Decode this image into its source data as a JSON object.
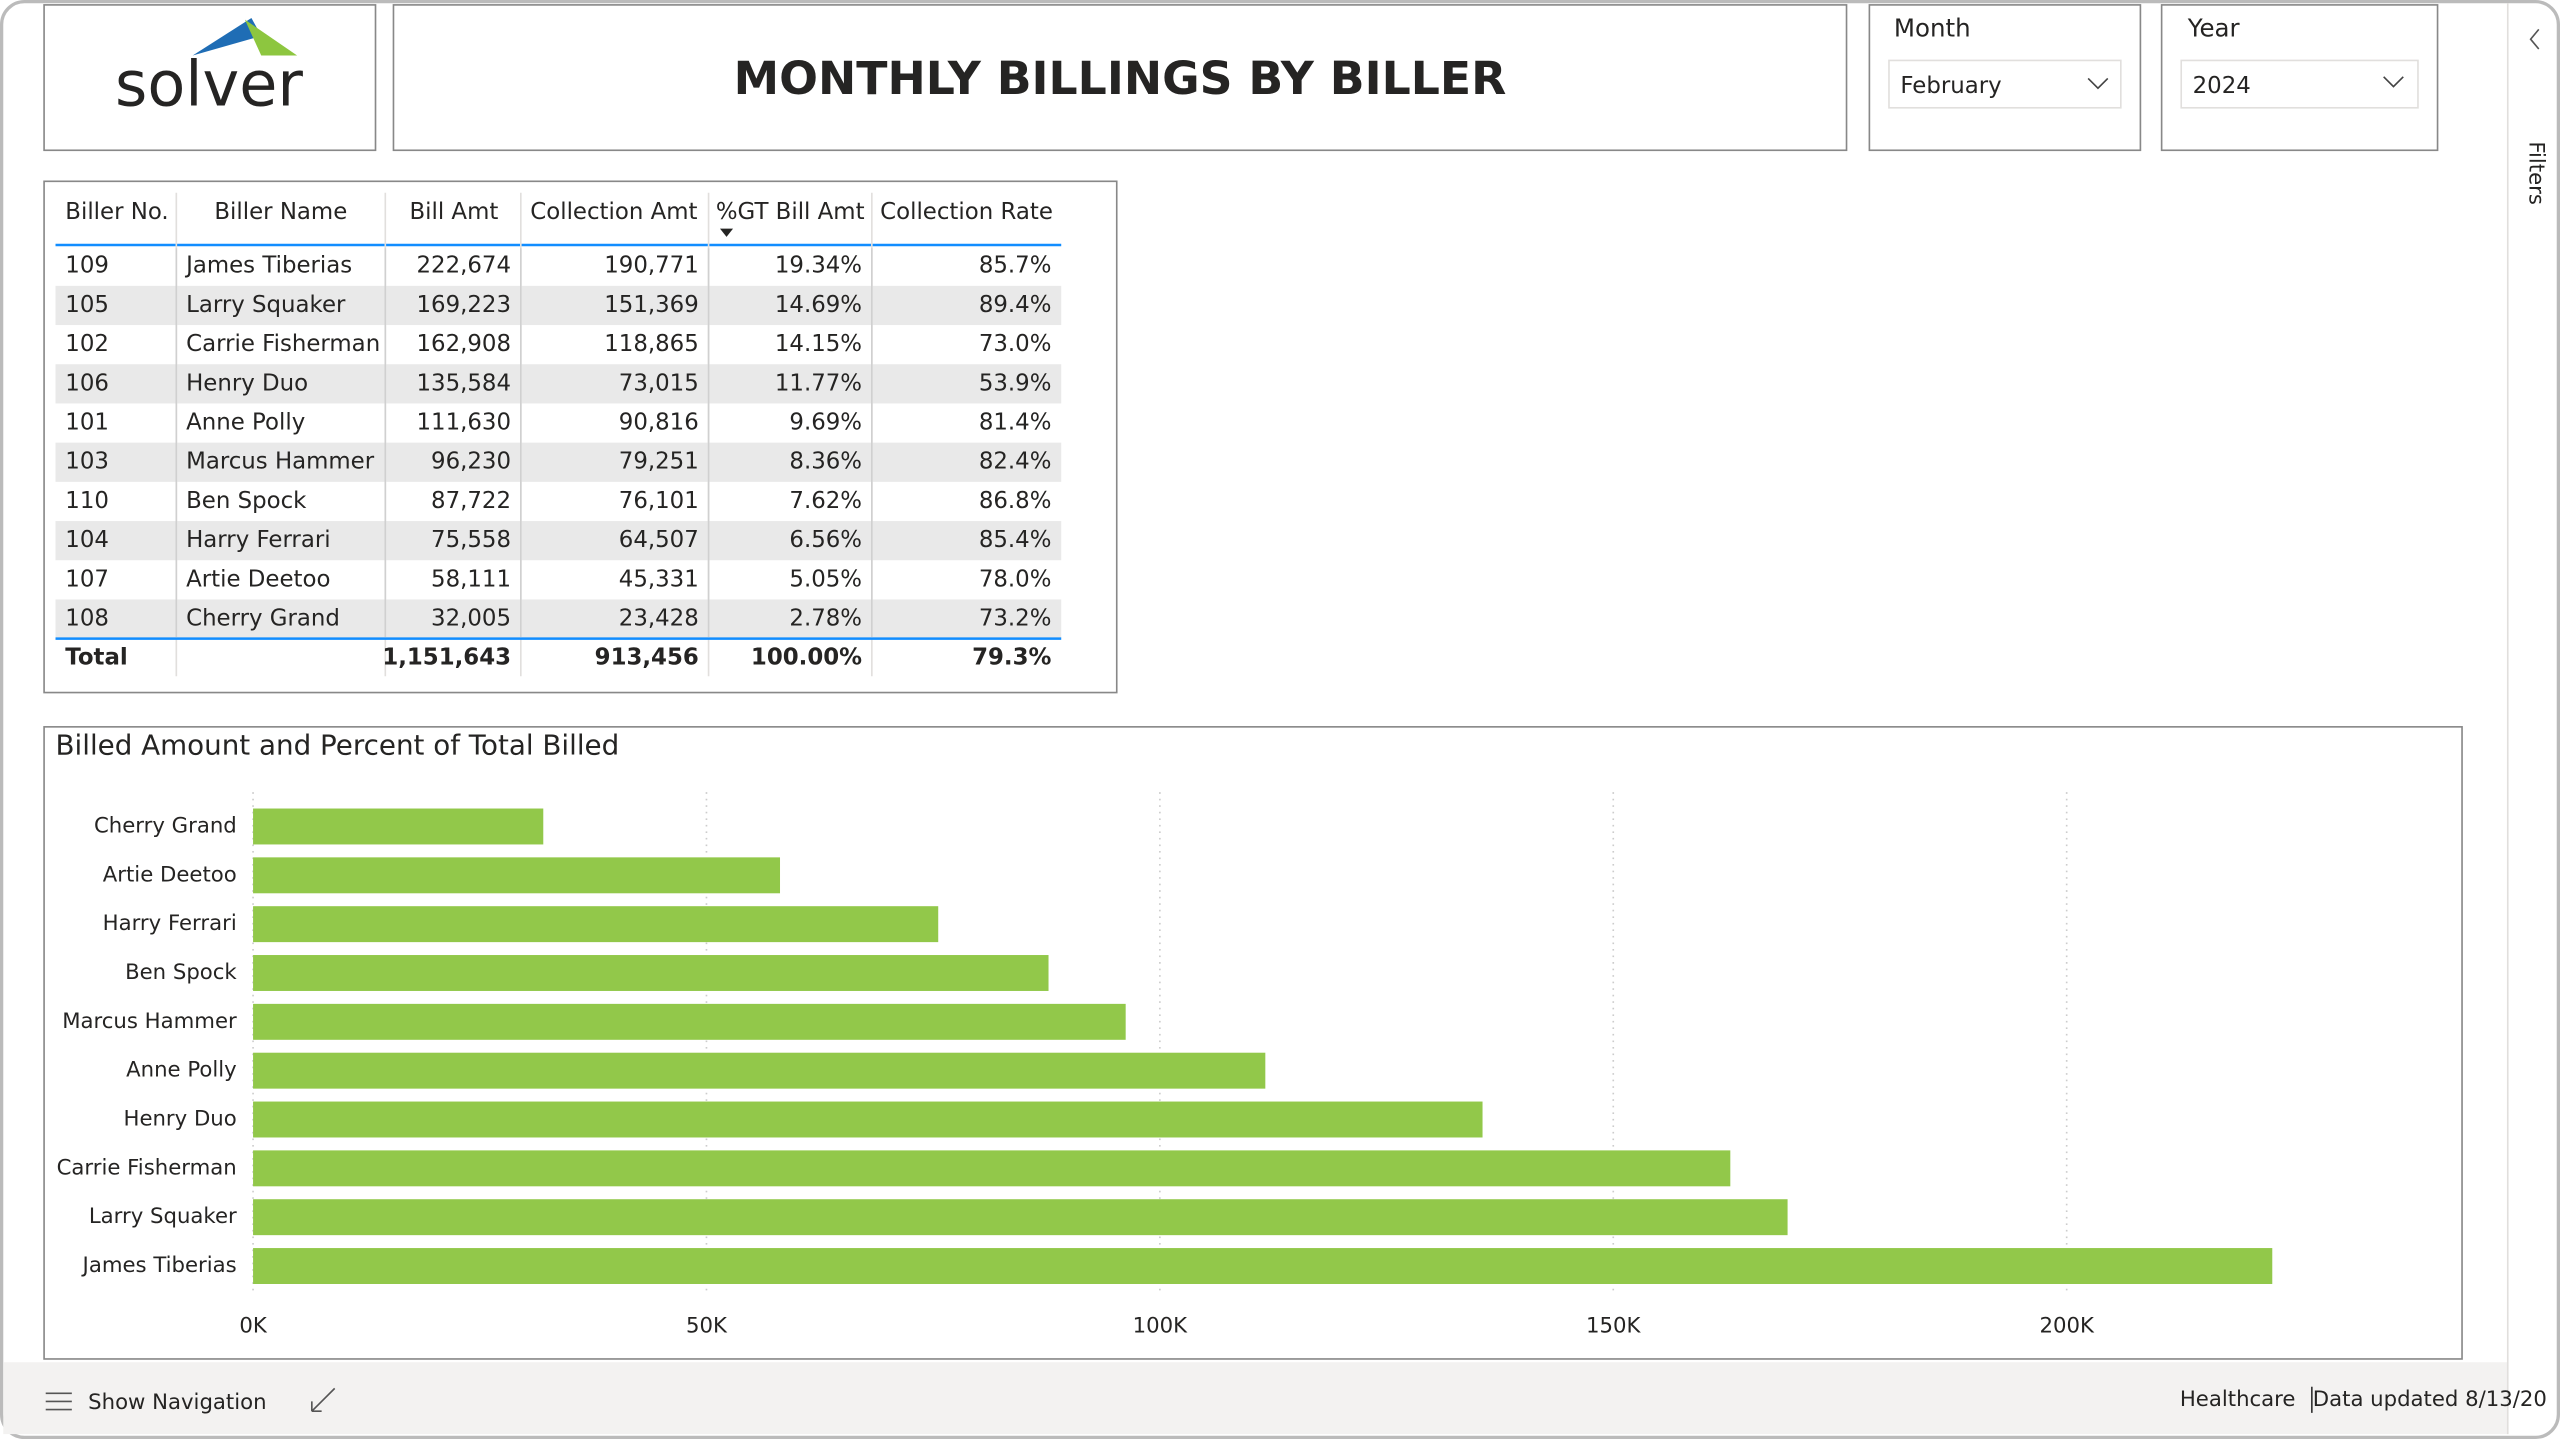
{
  "logo": "solver",
  "header": {
    "title": "MONTHLY BILLINGS BY BILLER"
  },
  "filters": [
    {
      "label": "Month",
      "value": "February"
    },
    {
      "label": "Year",
      "value": "2024"
    }
  ],
  "table": {
    "columns": [
      "Biller No.",
      "Biller Name",
      "Bill Amt",
      "Collection Amt",
      "%GT Bill Amt",
      "Collection Rate"
    ],
    "rows": [
      [
        "109",
        "James Tiberias",
        "222,674",
        "190,771",
        "19.34%",
        "85.7%"
      ],
      [
        "105",
        "Larry Squaker",
        "169,223",
        "151,369",
        "14.69%",
        "89.4%"
      ],
      [
        "102",
        "Carrie Fisherman",
        "162,908",
        "118,865",
        "14.15%",
        "73.0%"
      ],
      [
        "106",
        "Henry Duo",
        "135,584",
        "73,015",
        "11.77%",
        "53.9%"
      ],
      [
        "101",
        "Anne Polly",
        "111,630",
        "90,816",
        "9.69%",
        "81.4%"
      ],
      [
        "103",
        "Marcus Hammer",
        "96,230",
        "79,251",
        "8.36%",
        "82.4%"
      ],
      [
        "110",
        "Ben Spock",
        "87,722",
        "76,101",
        "7.62%",
        "86.8%"
      ],
      [
        "104",
        "Harry Ferrari",
        "75,558",
        "64,507",
        "6.56%",
        "85.4%"
      ],
      [
        "107",
        "Artie Deetoo",
        "58,111",
        "45,331",
        "5.05%",
        "78.0%"
      ],
      [
        "108",
        "Cherry Grand",
        "32,005",
        "23,428",
        "2.78%",
        "73.2%"
      ]
    ],
    "total": [
      "Total",
      "",
      "1,151,643",
      "913,456",
      "100.00%",
      "79.3%"
    ]
  },
  "chart_data": {
    "type": "bar",
    "orientation": "horizontal",
    "title": "Billed Amount and Percent of Total Billed",
    "categories": [
      "Cherry Grand",
      "Artie Deetoo",
      "Harry Ferrari",
      "Ben Spock",
      "Marcus Hammer",
      "Anne Polly",
      "Henry Duo",
      "Carrie Fisherman",
      "Larry Squaker",
      "James Tiberias"
    ],
    "values": [
      32005,
      58111,
      75558,
      87722,
      96230,
      111630,
      135584,
      162908,
      169223,
      222674
    ],
    "color": "#92c84a",
    "xlim": [
      0,
      240000
    ],
    "xticks": [
      {
        "value": 0,
        "label": "0K"
      },
      {
        "value": 50000,
        "label": "50K"
      },
      {
        "value": 100000,
        "label": "100K"
      },
      {
        "value": 150000,
        "label": "150K"
      },
      {
        "value": 200000,
        "label": "200K"
      }
    ],
    "grid": true
  },
  "footer": {
    "nav": "Show Navigation",
    "workspace": "Healthcare",
    "updated": "Data updated 8/13/20"
  },
  "sidebar": {
    "label": "Filters"
  }
}
